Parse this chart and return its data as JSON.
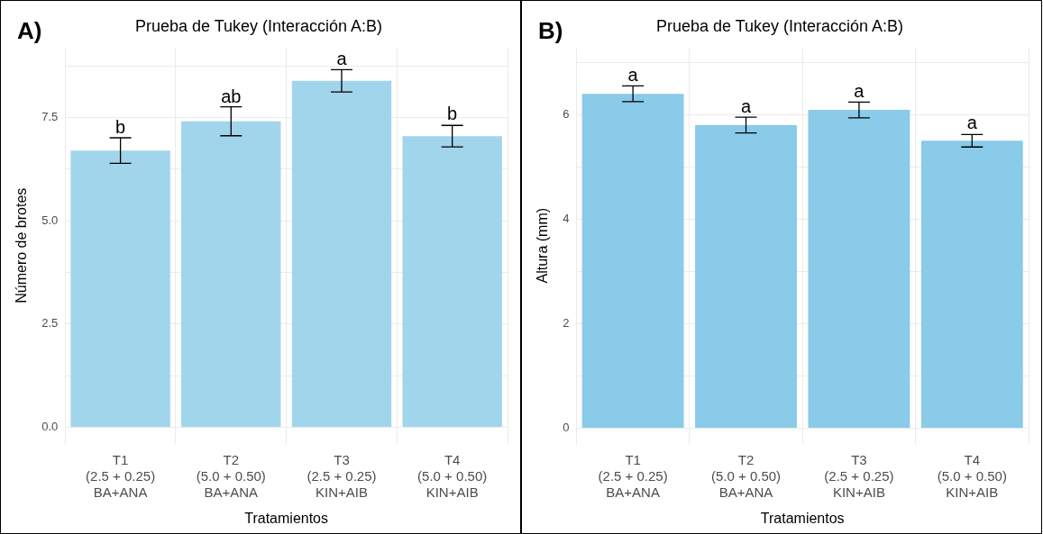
{
  "chart_data": [
    {
      "type": "bar",
      "title": "Prueba de Tukey (Interacción A:B)",
      "xlabel": "Tratamientos",
      "ylabel": "Número de brotes",
      "categories": [
        "T1\n(2.5 + 0.25)\nBA+ANA",
        "T2\n(5.0 + 0.50)\nBA+ANA",
        "T3\n(2.5 + 0.25)\nKIN+AIB",
        "T4\n(5.0 + 0.50)\nKIN+AIB"
      ],
      "values": [
        6.7,
        7.41,
        8.39,
        7.05
      ],
      "errors": [
        0.31,
        0.35,
        0.27,
        0.26
      ],
      "color": "#a1d5ec",
      "ylim": [
        -0.4,
        9.2
      ],
      "yticks": [
        {
          "value": 0,
          "label": "0.0"
        },
        {
          "value": 1.25,
          "label": null
        },
        {
          "value": 2.5,
          "label": "2.5"
        },
        {
          "value": 3.75,
          "label": null
        },
        {
          "value": 5,
          "label": "5.0"
        },
        {
          "value": 6.25,
          "label": null
        },
        {
          "value": 7.5,
          "label": "7.5"
        },
        {
          "value": 8.75,
          "label": null
        }
      ],
      "grid": true,
      "annotations": [
        "A)",
        {
          "text": "b",
          "x": "T1\n(2.5 + 0.25)\nBA+ANA",
          "y": 6.99
        },
        {
          "text": "ab",
          "x": "T2\n(5.0 + 0.50)\nBA+ANA",
          "y": 7.75
        },
        {
          "text": "a",
          "x": "T3\n(2.5 + 0.25)\nKIN+AIB",
          "y": 8.65
        },
        {
          "text": "b",
          "x": "T4\n(5.0 + 0.50)\nKIN+AIB",
          "y": 7.32
        }
      ]
    },
    {
      "type": "bar",
      "title": "Prueba de Tukey (Interacción A:B)",
      "xlabel": "Tratamientos",
      "ylabel": "Altura (mm)",
      "categories": [
        "T1\n(2.5 + 0.25)\nBA+ANA",
        "T2\n(5.0 + 0.50)\nBA+ANA",
        "T3\n(2.5 + 0.25)\nKIN+AIB",
        "T4\n(5.0 + 0.50)\nKIN+AIB"
      ],
      "values": [
        6.41,
        5.81,
        6.1,
        5.51
      ],
      "errors": [
        0.15,
        0.15,
        0.15,
        0.12
      ],
      "color": "#89cbe8",
      "ylim": [
        -0.3,
        7.3
      ],
      "yticks": [
        0,
        {
          "value": 1,
          "label": null
        },
        2,
        {
          "value": 3,
          "label": null
        },
        4,
        {
          "value": 5,
          "label": null
        },
        6,
        {
          "value": 7,
          "label": null
        }
      ],
      "grid": true,
      "annotations": [
        "B)",
        {
          "text": "a",
          "x": "T1\n(2.5 + 0.25)\nBA+ANA",
          "y": 6.56
        },
        {
          "text": "a",
          "x": "T2\n(5.0 + 0.50)\nBA+ANA",
          "y": 5.96
        },
        {
          "text": "a",
          "x": "T3\n(2.5 + 0.25)\nKIN+AIB",
          "y": 6.25
        },
        {
          "text": "a",
          "x": "T4\n(5.0 + 0.50)\nKIN+AIB",
          "y": 5.64
        }
      ]
    }
  ]
}
